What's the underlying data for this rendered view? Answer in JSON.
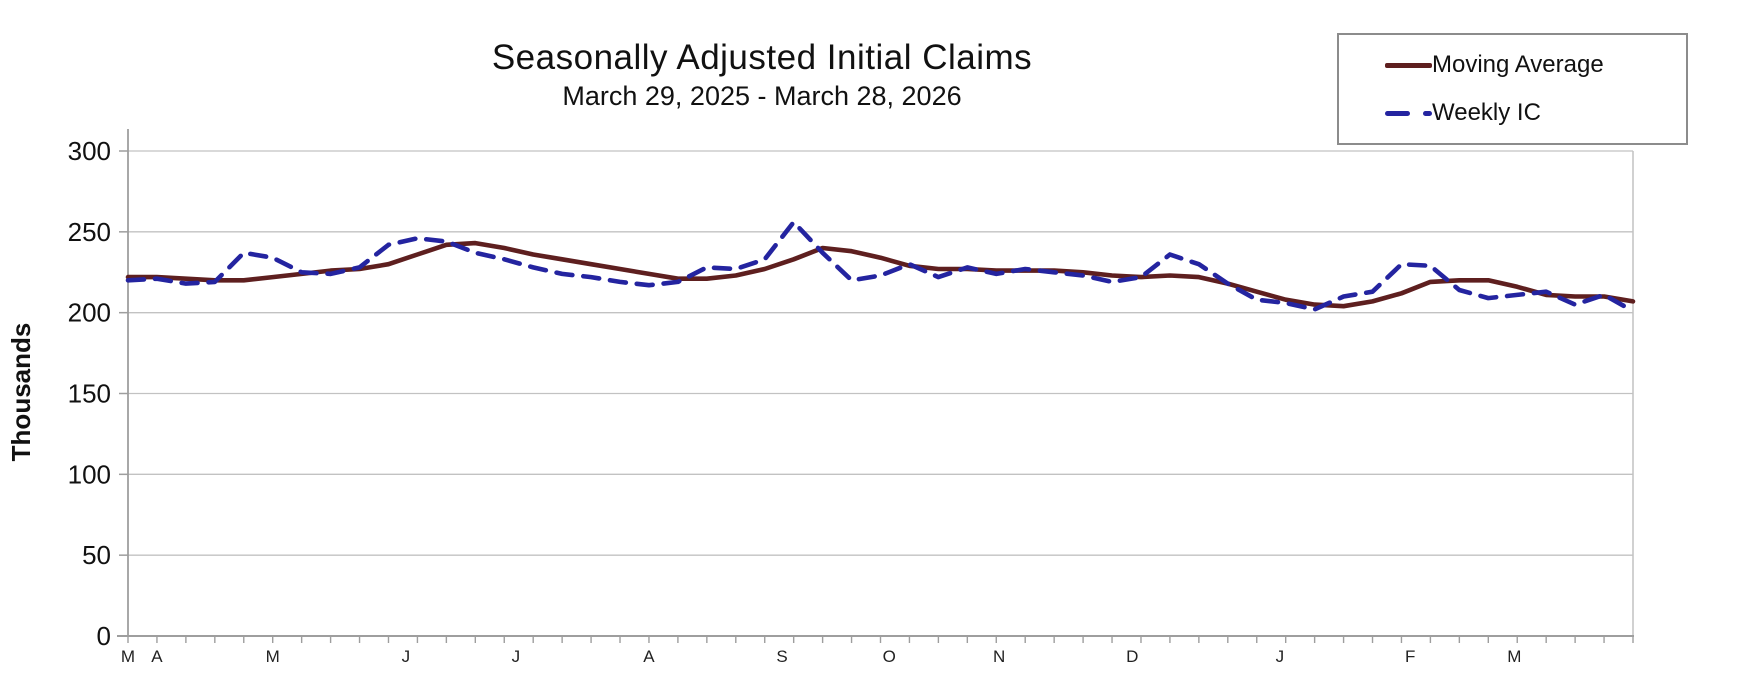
{
  "chart_data": {
    "type": "line",
    "title": "Seasonally Adjusted Initial Claims",
    "subtitle": "March 29, 2025 - March 28, 2026",
    "ylabel": "Thousands",
    "ylim": [
      0,
      300
    ],
    "y_ticks": [
      0,
      50,
      100,
      150,
      200,
      250,
      300
    ],
    "grid": true,
    "legend_position": "top-right",
    "x_unit": "week",
    "x_range_weeks": [
      0,
      52
    ],
    "month_labels": [
      {
        "label": "M",
        "week": 0
      },
      {
        "label": "A",
        "week": 1
      },
      {
        "label": "M",
        "week": 5
      },
      {
        "label": "J",
        "week": 9.6
      },
      {
        "label": "J",
        "week": 13.4
      },
      {
        "label": "A",
        "week": 18
      },
      {
        "label": "S",
        "week": 22.6
      },
      {
        "label": "O",
        "week": 26.3
      },
      {
        "label": "N",
        "week": 30.1
      },
      {
        "label": "D",
        "week": 34.7
      },
      {
        "label": "J",
        "week": 39.8
      },
      {
        "label": "F",
        "week": 44.3
      },
      {
        "label": "M",
        "week": 47.9
      }
    ],
    "series": [
      {
        "name": "Moving Average",
        "style": "solid",
        "color": "#5e1f1f",
        "values": [
          222,
          222,
          221,
          220,
          220,
          222,
          224,
          226,
          227,
          230,
          236,
          242,
          243,
          240,
          236,
          233,
          230,
          227,
          224,
          221,
          221,
          223,
          227,
          233,
          240,
          238,
          234,
          229,
          227,
          227,
          226,
          226,
          226,
          225,
          223,
          222,
          223,
          222,
          218,
          213,
          208,
          205,
          204,
          207,
          212,
          219,
          220,
          220,
          216,
          211,
          210,
          210,
          207
        ]
      },
      {
        "name": "Weekly IC",
        "style": "dashed",
        "color": "#2424a0",
        "values": [
          220,
          221,
          218,
          219,
          237,
          234,
          225,
          224,
          228,
          242,
          246,
          244,
          237,
          233,
          228,
          224,
          222,
          219,
          217,
          219,
          228,
          227,
          233,
          256,
          237,
          220,
          223,
          230,
          222,
          228,
          224,
          227,
          225,
          223,
          219,
          222,
          236,
          230,
          218,
          208,
          206,
          202,
          210,
          213,
          230,
          229,
          214,
          209,
          211,
          213,
          205,
          211,
          201
        ]
      }
    ],
    "colors": {
      "grid": "#c2c2c2",
      "axis": "#9e9e9e",
      "text": "#111111"
    }
  }
}
